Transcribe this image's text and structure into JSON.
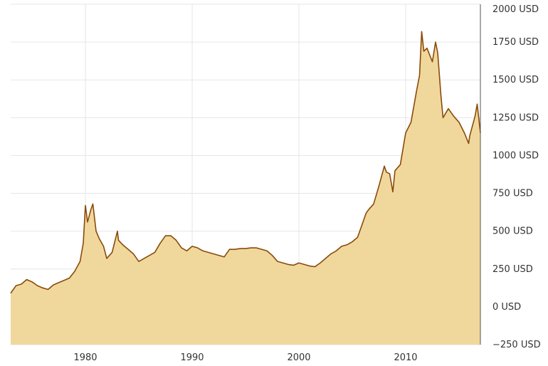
{
  "chart_data": {
    "type": "area",
    "title": "",
    "xlabel": "",
    "ylabel": "",
    "xlim": [
      1973,
      2017
    ],
    "ylim": [
      -250,
      2000
    ],
    "x_ticks": [
      1980,
      1990,
      2000,
      2010
    ],
    "y_ticks": [
      -250,
      0,
      250,
      500,
      750,
      1000,
      1250,
      1500,
      1750,
      2000
    ],
    "y_tick_labels": [
      "−250 USD",
      "0 USD",
      "250 USD",
      "500 USD",
      "750 USD",
      "1000 USD",
      "1250 USD",
      "1500 USD",
      "1750 USD",
      "2000 USD"
    ],
    "grid": true,
    "legend": "none",
    "y_axis_position": "right",
    "colors": {
      "fill": "#f0d89c",
      "line": "#8a4a0b"
    },
    "series": [
      {
        "x": [
          1973.0,
          1973.5,
          1974.0,
          1974.5,
          1975.0,
          1975.5,
          1976.0,
          1976.5,
          1977.0,
          1977.5,
          1978.0,
          1978.5,
          1979.0,
          1979.5,
          1979.8,
          1980.0,
          1980.2,
          1980.5,
          1980.7,
          1981.0,
          1981.3,
          1981.7,
          1982.0,
          1982.5,
          1983.0,
          1983.1,
          1983.5,
          1984.0,
          1984.5,
          1985.0,
          1985.5,
          1986.0,
          1986.5,
          1987.0,
          1987.5,
          1988.0,
          1988.5,
          1989.0,
          1989.5,
          1990.0,
          1990.5,
          1991.0,
          1991.5,
          1992.0,
          1992.5,
          1993.0,
          1993.5,
          1994.0,
          1994.5,
          1995.0,
          1995.5,
          1996.0,
          1996.5,
          1997.0,
          1997.5,
          1998.0,
          1998.5,
          1999.0,
          1999.5,
          2000.0,
          2000.5,
          2001.0,
          2001.5,
          2002.0,
          2002.5,
          2003.0,
          2003.5,
          2004.0,
          2004.5,
          2005.0,
          2005.5,
          2006.0,
          2006.3,
          2006.5,
          2007.0,
          2007.5,
          2008.0,
          2008.2,
          2008.5,
          2008.8,
          2009.0,
          2009.5,
          2010.0,
          2010.5,
          2011.0,
          2011.3,
          2011.5,
          2011.7,
          2012.0,
          2012.5,
          2012.8,
          2013.0,
          2013.3,
          2013.5,
          2014.0,
          2014.5,
          2015.0,
          2015.5,
          2015.9,
          2016.0,
          2016.5,
          2016.7,
          2017.0
        ],
        "values": [
          90,
          140,
          150,
          180,
          165,
          140,
          125,
          115,
          145,
          160,
          175,
          190,
          235,
          300,
          420,
          670,
          560,
          640,
          680,
          500,
          450,
          400,
          320,
          360,
          500,
          440,
          410,
          380,
          350,
          300,
          320,
          340,
          360,
          420,
          470,
          470,
          440,
          390,
          370,
          400,
          390,
          370,
          360,
          350,
          340,
          330,
          380,
          380,
          385,
          385,
          390,
          390,
          380,
          370,
          340,
          300,
          290,
          280,
          275,
          290,
          280,
          270,
          265,
          290,
          320,
          350,
          370,
          400,
          410,
          430,
          460,
          560,
          620,
          640,
          680,
          800,
          930,
          890,
          880,
          760,
          900,
          940,
          1150,
          1220,
          1420,
          1530,
          1820,
          1690,
          1710,
          1620,
          1750,
          1680,
          1400,
          1250,
          1310,
          1260,
          1220,
          1150,
          1080,
          1130,
          1260,
          1340,
          1150
        ]
      }
    ]
  }
}
